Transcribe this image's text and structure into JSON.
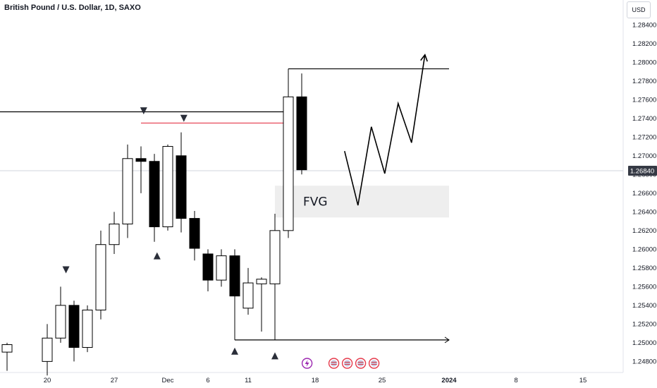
{
  "header": {
    "title": "British Pound / U.S. Dollar, 1D, SAXO",
    "currency_button": "USD"
  },
  "colors": {
    "candle_up_fill": "#ffffff",
    "candle_down_fill": "#000000",
    "candle_outline": "#000000",
    "wick": "#000000",
    "level_line": "#000000",
    "red_line": "#e5394b",
    "fvg_zone": "#eeeeee",
    "price_tag_bg": "#363a45",
    "axis_text": "#131722"
  },
  "chart_data": {
    "type": "candlestick",
    "ylim": [
      1.2475,
      1.285
    ],
    "y_ticks": [
      "1.28400",
      "1.28200",
      "1.28000",
      "1.27800",
      "1.27600",
      "1.27400",
      "1.27200",
      "1.27000",
      "1.26800",
      "1.26600",
      "1.26400",
      "1.26200",
      "1.26000",
      "1.25800",
      "1.25600",
      "1.25400",
      "1.25200",
      "1.25000",
      "1.24800"
    ],
    "x_ticks": [
      {
        "label": "20",
        "idx": 3
      },
      {
        "label": "27",
        "idx": 8
      },
      {
        "label": "Dec",
        "idx": 12
      },
      {
        "label": "6",
        "idx": 15
      },
      {
        "label": "11",
        "idx": 18
      },
      {
        "label": "18",
        "idx": 23
      },
      {
        "label": "25",
        "idx": 28
      },
      {
        "label": "2024",
        "idx": 33,
        "bold": true
      },
      {
        "label": "8",
        "idx": 38
      },
      {
        "label": "15",
        "idx": 43
      }
    ],
    "current_price": {
      "label": "1.26840",
      "value": 1.2684
    },
    "candles": [
      {
        "idx": 0,
        "o": 1.249,
        "h": 1.25,
        "l": 1.247,
        "c": 1.2498
      },
      {
        "idx": 3,
        "o": 1.248,
        "h": 1.252,
        "l": 1.2465,
        "c": 1.2505
      },
      {
        "idx": 4,
        "o": 1.2505,
        "h": 1.256,
        "l": 1.25,
        "c": 1.254
      },
      {
        "idx": 5,
        "o": 1.254,
        "h": 1.2545,
        "l": 1.248,
        "c": 1.2495
      },
      {
        "idx": 6,
        "o": 1.2495,
        "h": 1.254,
        "l": 1.249,
        "c": 1.2535
      },
      {
        "idx": 7,
        "o": 1.2535,
        "h": 1.262,
        "l": 1.2525,
        "c": 1.2605
      },
      {
        "idx": 8,
        "o": 1.2605,
        "h": 1.264,
        "l": 1.2595,
        "c": 1.2627
      },
      {
        "idx": 9,
        "o": 1.2627,
        "h": 1.2712,
        "l": 1.2612,
        "c": 1.2697
      },
      {
        "idx": 10,
        "o": 1.2697,
        "h": 1.271,
        "l": 1.266,
        "c": 1.2694
      },
      {
        "idx": 11,
        "o": 1.2694,
        "h": 1.2702,
        "l": 1.2608,
        "c": 1.2624
      },
      {
        "idx": 12,
        "o": 1.2624,
        "h": 1.2712,
        "l": 1.262,
        "c": 1.271
      },
      {
        "idx": 13,
        "o": 1.27,
        "h": 1.2725,
        "l": 1.2618,
        "c": 1.2633
      },
      {
        "idx": 14,
        "o": 1.2633,
        "h": 1.2641,
        "l": 1.2588,
        "c": 1.2601
      },
      {
        "idx": 15,
        "o": 1.2595,
        "h": 1.26,
        "l": 1.2555,
        "c": 1.2567
      },
      {
        "idx": 16,
        "o": 1.2567,
        "h": 1.26,
        "l": 1.256,
        "c": 1.2593
      },
      {
        "idx": 17,
        "o": 1.2593,
        "h": 1.26,
        "l": 1.253,
        "c": 1.255
      },
      {
        "idx": 18,
        "o": 1.2537,
        "h": 1.258,
        "l": 1.253,
        "c": 1.2564
      },
      {
        "idx": 19,
        "o": 1.2563,
        "h": 1.257,
        "l": 1.2512,
        "c": 1.2568
      },
      {
        "idx": 20,
        "o": 1.2563,
        "h": 1.2638,
        "l": 1.2503,
        "c": 1.262
      },
      {
        "idx": 21,
        "o": 1.262,
        "h": 1.2767,
        "l": 1.2612,
        "c": 1.2763
      },
      {
        "idx": 22,
        "o": 1.2763,
        "h": 1.2788,
        "l": 1.268,
        "c": 1.2685
      }
    ],
    "levels": [
      {
        "kind": "horizontal",
        "color": "#000000",
        "y": 1.2747,
        "from_idx": -1,
        "to_idx": 20.9
      },
      {
        "kind": "horizontal",
        "color": "#e5394b",
        "y": 1.2735,
        "from_idx": 10,
        "to_idx": 20.9
      },
      {
        "kind": "horizontal",
        "color": "#000000",
        "y": 1.2793,
        "from_idx": 21,
        "to_idx": 33,
        "tick_down_to": 1.2763
      },
      {
        "kind": "horizontal_arrow",
        "color": "#000000",
        "y": 1.2503,
        "from_idx": 17,
        "to_idx": 33,
        "tick_up_to": 1.2595
      }
    ],
    "fvg_zone": {
      "label": "FVG",
      "y_top": 1.2668,
      "y_bottom": 1.2634,
      "from_idx": 20,
      "to_idx": 33
    },
    "markers": [
      {
        "shape": "down",
        "idx": 4.4,
        "y": 1.2578
      },
      {
        "shape": "down",
        "idx": 10.2,
        "y": 1.2748
      },
      {
        "shape": "down",
        "idx": 13.2,
        "y": 1.274
      },
      {
        "shape": "up",
        "idx": 11.2,
        "y": 1.2593
      },
      {
        "shape": "up",
        "idx": 17,
        "y": 1.2491
      },
      {
        "shape": "up",
        "idx": 20,
        "y": 1.2486
      }
    ],
    "projection": [
      {
        "idx": 25.2,
        "y": 1.2705
      },
      {
        "idx": 26.2,
        "y": 1.2647
      },
      {
        "idx": 27.2,
        "y": 1.2731
      },
      {
        "idx": 28.2,
        "y": 1.2681
      },
      {
        "idx": 29.2,
        "y": 1.2756
      },
      {
        "idx": 30.2,
        "y": 1.2714
      },
      {
        "idx": 31.2,
        "y": 1.2808
      }
    ],
    "event_icons": [
      {
        "kind": "bolt",
        "idx": 22.4,
        "color": "#9c27b0"
      },
      {
        "kind": "us-flag",
        "idx": 24.4,
        "color": "#e5394b"
      },
      {
        "kind": "uk-flag",
        "idx": 25.4,
        "color": "#e5394b"
      },
      {
        "kind": "us-flag",
        "idx": 26.4,
        "color": "#e5394b"
      },
      {
        "kind": "uk-flag",
        "idx": 27.4,
        "color": "#e5394b"
      }
    ]
  }
}
